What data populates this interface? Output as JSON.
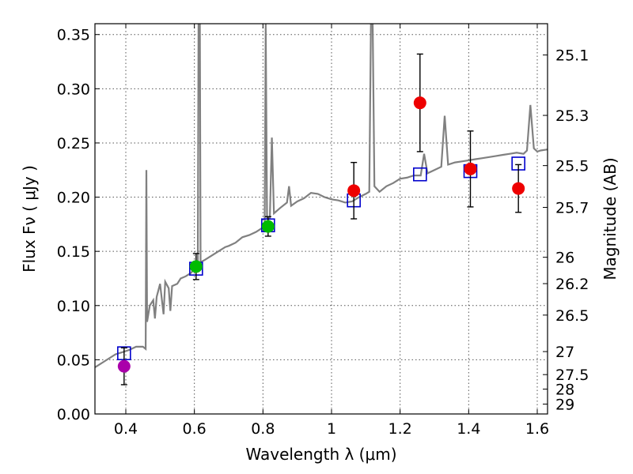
{
  "chart_data": {
    "type": "scatter",
    "xlabel": "Wavelength  λ (μm)",
    "ylabel": "Flux  Fν  ( μJy )",
    "ylabel_right": "Magnitude (AB)",
    "xlim": [
      0.31,
      1.63
    ],
    "ylim": [
      0.0,
      0.36
    ],
    "grid": true,
    "x_ticks": [
      {
        "value": 0.4,
        "label": "0.4"
      },
      {
        "value": 0.6,
        "label": "0.6"
      },
      {
        "value": 0.8,
        "label": "0.8"
      },
      {
        "value": 1.0,
        "label": "1"
      },
      {
        "value": 1.2,
        "label": "1.2"
      },
      {
        "value": 1.4,
        "label": "1.4"
      },
      {
        "value": 1.6,
        "label": "1.6"
      }
    ],
    "y_ticks": [
      {
        "value": 0.0,
        "label": "0.00"
      },
      {
        "value": 0.05,
        "label": "0.05"
      },
      {
        "value": 0.1,
        "label": "0.10"
      },
      {
        "value": 0.15,
        "label": "0.15"
      },
      {
        "value": 0.2,
        "label": "0.20"
      },
      {
        "value": 0.25,
        "label": "0.25"
      },
      {
        "value": 0.3,
        "label": "0.30"
      },
      {
        "value": 0.35,
        "label": "0.35"
      }
    ],
    "right_ticks": [
      {
        "value": 25.1,
        "label": "25.1"
      },
      {
        "value": 25.3,
        "label": "25.3"
      },
      {
        "value": 25.5,
        "label": "25.5"
      },
      {
        "value": 25.7,
        "label": "25.7"
      },
      {
        "value": 26.0,
        "label": "26"
      },
      {
        "value": 26.2,
        "label": "26.2"
      },
      {
        "value": 26.5,
        "label": "26.5"
      },
      {
        "value": 27.0,
        "label": "27"
      },
      {
        "value": 27.5,
        "label": "27.5"
      },
      {
        "value": 28.0,
        "label": "28"
      },
      {
        "value": 29.0,
        "label": "29"
      }
    ],
    "series": [
      {
        "name": "model spectrum",
        "kind": "line",
        "color": "#808080",
        "points": [
          [
            0.31,
            0.043
          ],
          [
            0.33,
            0.047
          ],
          [
            0.35,
            0.051
          ],
          [
            0.37,
            0.055
          ],
          [
            0.39,
            0.057
          ],
          [
            0.41,
            0.059
          ],
          [
            0.43,
            0.062
          ],
          [
            0.45,
            0.062
          ],
          [
            0.458,
            0.06
          ],
          [
            0.46,
            0.225
          ],
          [
            0.462,
            0.085
          ],
          [
            0.47,
            0.1
          ],
          [
            0.48,
            0.105
          ],
          [
            0.485,
            0.088
          ],
          [
            0.49,
            0.108
          ],
          [
            0.5,
            0.12
          ],
          [
            0.51,
            0.092
          ],
          [
            0.515,
            0.122
          ],
          [
            0.525,
            0.116
          ],
          [
            0.53,
            0.095
          ],
          [
            0.535,
            0.118
          ],
          [
            0.55,
            0.12
          ],
          [
            0.56,
            0.125
          ],
          [
            0.575,
            0.127
          ],
          [
            0.59,
            0.13
          ],
          [
            0.6,
            0.134
          ],
          [
            0.61,
            0.136
          ],
          [
            0.612,
            0.36
          ],
          [
            0.616,
            0.36
          ],
          [
            0.618,
            0.14
          ],
          [
            0.63,
            0.142
          ],
          [
            0.65,
            0.146
          ],
          [
            0.67,
            0.15
          ],
          [
            0.69,
            0.154
          ],
          [
            0.7,
            0.155
          ],
          [
            0.72,
            0.158
          ],
          [
            0.74,
            0.163
          ],
          [
            0.76,
            0.165
          ],
          [
            0.78,
            0.168
          ],
          [
            0.8,
            0.172
          ],
          [
            0.805,
            0.172
          ],
          [
            0.808,
            0.36
          ],
          [
            0.812,
            0.18
          ],
          [
            0.82,
            0.18
          ],
          [
            0.826,
            0.255
          ],
          [
            0.832,
            0.185
          ],
          [
            0.85,
            0.19
          ],
          [
            0.87,
            0.195
          ],
          [
            0.876,
            0.21
          ],
          [
            0.882,
            0.192
          ],
          [
            0.9,
            0.196
          ],
          [
            0.92,
            0.199
          ],
          [
            0.94,
            0.204
          ],
          [
            0.96,
            0.203
          ],
          [
            0.98,
            0.2
          ],
          [
            1.0,
            0.198
          ],
          [
            1.02,
            0.197
          ],
          [
            1.04,
            0.195
          ],
          [
            1.06,
            0.196
          ],
          [
            1.08,
            0.2
          ],
          [
            1.1,
            0.203
          ],
          [
            1.11,
            0.205
          ],
          [
            1.115,
            0.36
          ],
          [
            1.12,
            0.36
          ],
          [
            1.125,
            0.21
          ],
          [
            1.14,
            0.205
          ],
          [
            1.16,
            0.21
          ],
          [
            1.18,
            0.213
          ],
          [
            1.2,
            0.217
          ],
          [
            1.22,
            0.218
          ],
          [
            1.24,
            0.22
          ],
          [
            1.26,
            0.22
          ],
          [
            1.27,
            0.24
          ],
          [
            1.28,
            0.222
          ],
          [
            1.3,
            0.225
          ],
          [
            1.32,
            0.228
          ],
          [
            1.33,
            0.275
          ],
          [
            1.34,
            0.23
          ],
          [
            1.36,
            0.232
          ],
          [
            1.38,
            0.233
          ],
          [
            1.4,
            0.234
          ],
          [
            1.42,
            0.235
          ],
          [
            1.44,
            0.236
          ],
          [
            1.46,
            0.237
          ],
          [
            1.48,
            0.238
          ],
          [
            1.5,
            0.239
          ],
          [
            1.52,
            0.24
          ],
          [
            1.54,
            0.241
          ],
          [
            1.56,
            0.24
          ],
          [
            1.57,
            0.243
          ],
          [
            1.58,
            0.285
          ],
          [
            1.59,
            0.245
          ],
          [
            1.6,
            0.242
          ],
          [
            1.61,
            0.243
          ],
          [
            1.63,
            0.244
          ]
        ]
      },
      {
        "name": "synthetic photometry",
        "kind": "open-square",
        "color": "#0000cc",
        "points": [
          [
            0.395,
            0.056
          ],
          [
            0.605,
            0.134
          ],
          [
            0.815,
            0.174
          ],
          [
            1.065,
            0.197
          ],
          [
            1.258,
            0.221
          ],
          [
            1.405,
            0.224
          ],
          [
            1.545,
            0.231
          ]
        ]
      },
      {
        "name": "observed photometry",
        "kind": "filled-circle-with-errorbars",
        "points": [
          {
            "x": 0.395,
            "y": 0.044,
            "err": 0.017,
            "color": "#aa00aa"
          },
          {
            "x": 0.605,
            "y": 0.136,
            "err": 0.012,
            "color": "#00bb00"
          },
          {
            "x": 0.815,
            "y": 0.173,
            "err": 0.009,
            "color": "#00bb00"
          },
          {
            "x": 1.065,
            "y": 0.206,
            "err": 0.026,
            "color": "#ee0000"
          },
          {
            "x": 1.258,
            "y": 0.287,
            "err": 0.045,
            "color": "#ee0000"
          },
          {
            "x": 1.405,
            "y": 0.226,
            "err": 0.035,
            "color": "#ee0000"
          },
          {
            "x": 1.545,
            "y": 0.208,
            "err": 0.022,
            "color": "#ee0000"
          }
        ]
      }
    ]
  }
}
